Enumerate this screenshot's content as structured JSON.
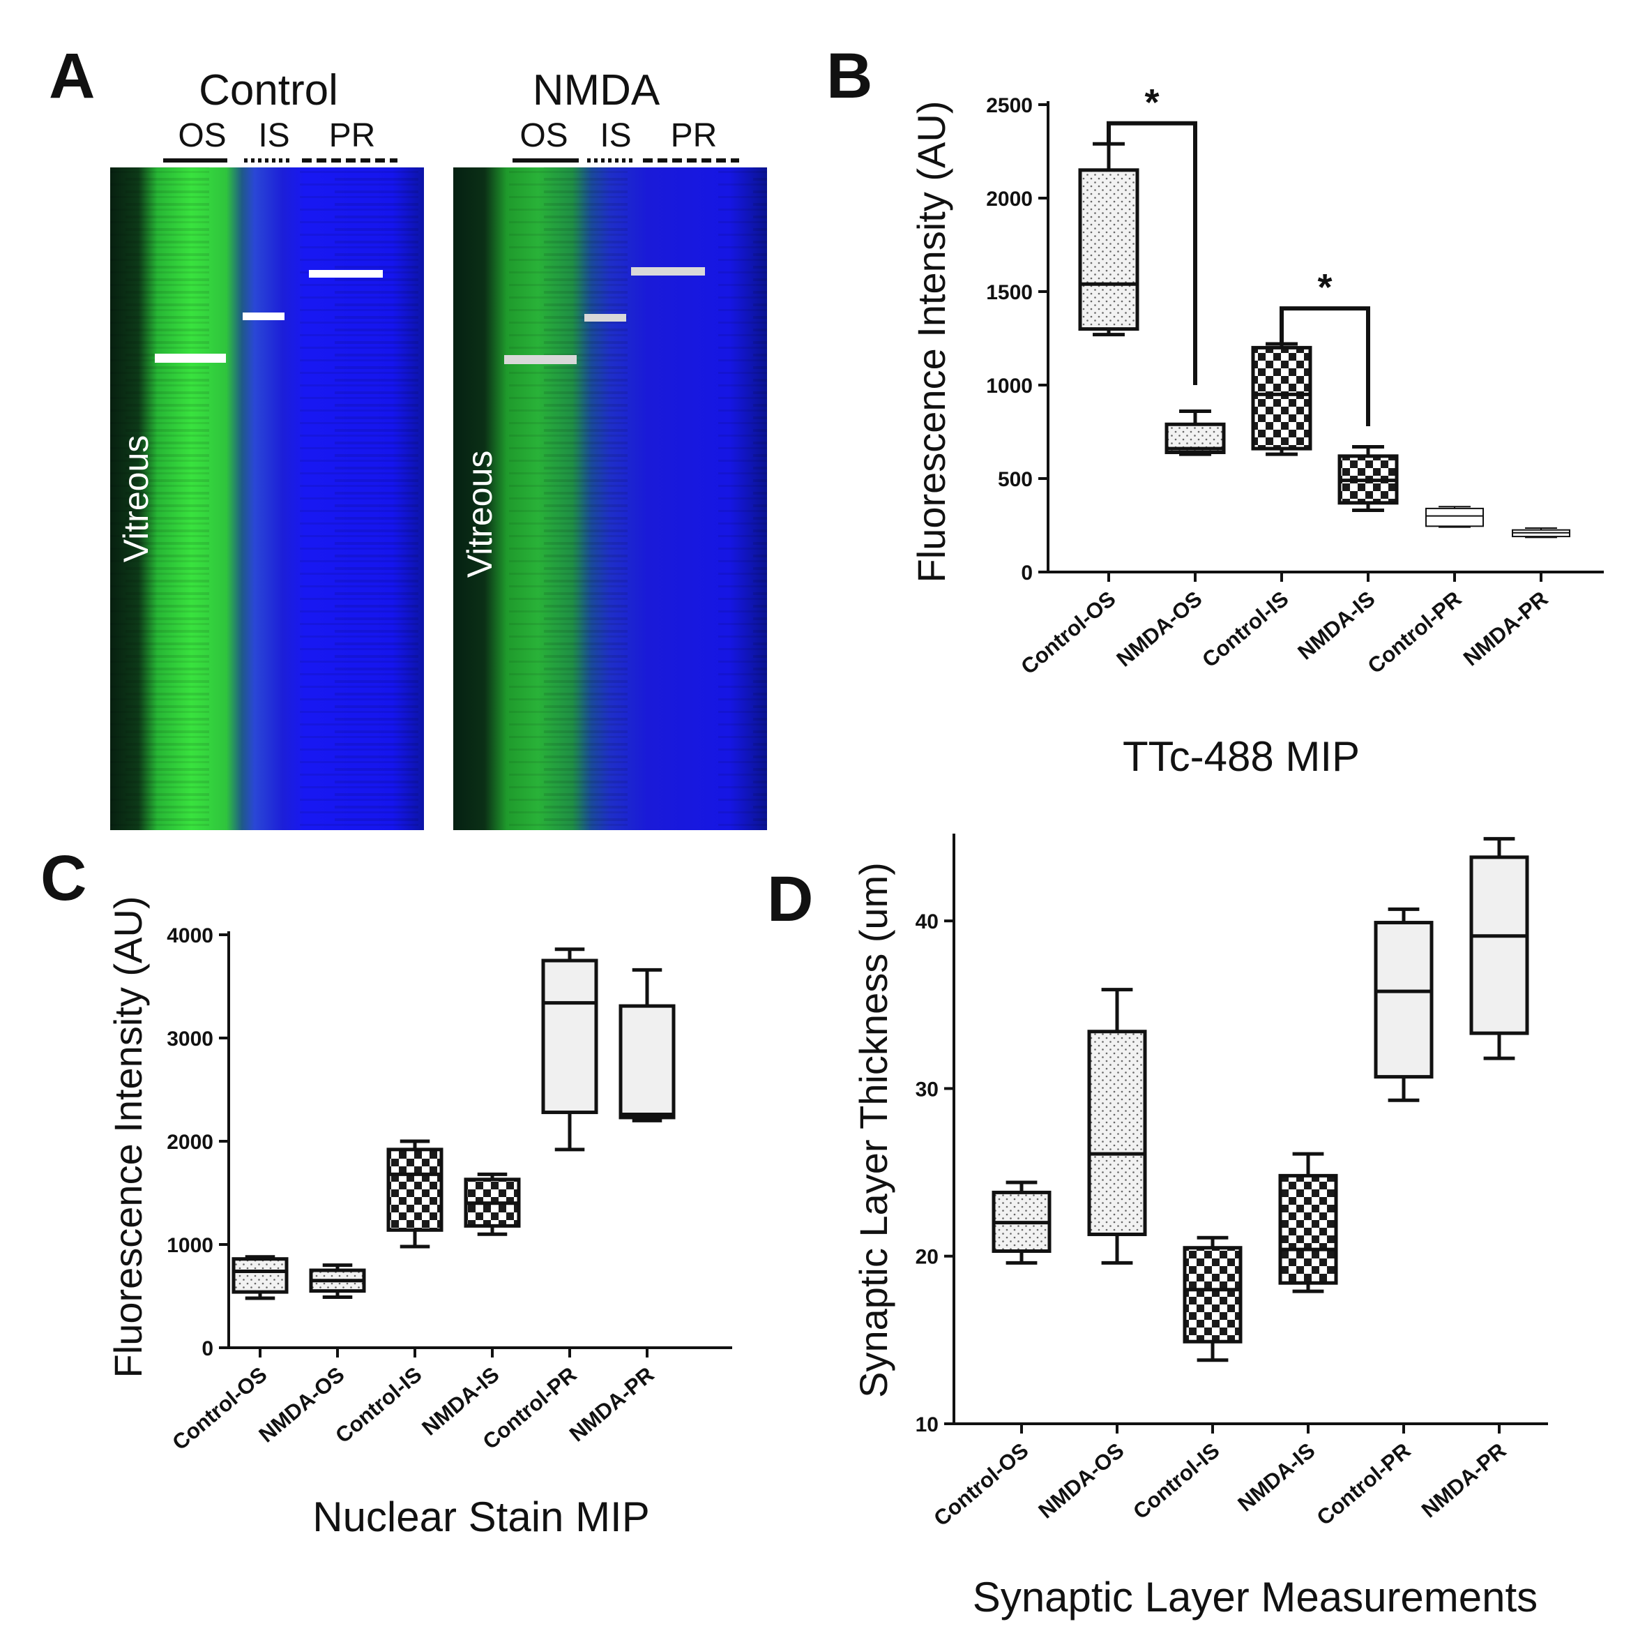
{
  "panel_a": {
    "letter": "A",
    "images": [
      {
        "title": "Control",
        "zones": [
          "OS",
          "IS",
          "PR"
        ],
        "side_label": "Vitreous"
      },
      {
        "title": "NMDA",
        "zones": [
          "OS",
          "IS",
          "PR"
        ],
        "side_label": "Vitreous"
      }
    ],
    "colors": {
      "green": "#2fd23a",
      "blue": "#1b1be6",
      "dark": "#0a2a12"
    }
  },
  "chart_data": [
    {
      "id": "B",
      "letter": "B",
      "type": "box",
      "categories": [
        "Control-OS",
        "NMDA-OS",
        "Control-IS",
        "NMDA-IS",
        "Control-PR",
        "NMDA-PR"
      ],
      "boxes": [
        {
          "min": 1270,
          "q1": 1300,
          "median": 1540,
          "q3": 2150,
          "max": 2290,
          "fill": "dots"
        },
        {
          "min": 630,
          "q1": 640,
          "median": 660,
          "q3": 790,
          "max": 860,
          "fill": "dots"
        },
        {
          "min": 630,
          "q1": 660,
          "median": 950,
          "q3": 1200,
          "max": 1220,
          "fill": "checker"
        },
        {
          "min": 330,
          "q1": 370,
          "median": 490,
          "q3": 620,
          "max": 670,
          "fill": "checker"
        },
        {
          "min": 240,
          "q1": 245,
          "median": 300,
          "q3": 340,
          "max": 350,
          "fill": "none"
        },
        {
          "min": 185,
          "q1": 190,
          "median": 210,
          "q3": 225,
          "max": 235,
          "fill": "none"
        }
      ],
      "yticks": [
        0,
        500,
        1000,
        1500,
        2000,
        2500
      ],
      "ylim": [
        0,
        2500
      ],
      "ylabel": "Fluorescence Intensity (AU)",
      "xlabel": "TTc-488 MIP",
      "significance": [
        {
          "from": 0,
          "to": 1,
          "y_start": 2290,
          "y_end": 1000,
          "y_top": 2400,
          "label": "*"
        },
        {
          "from": 2,
          "to": 3,
          "y_start": 1220,
          "y_end": 780,
          "y_top": 1410,
          "label": "*"
        }
      ]
    },
    {
      "id": "C",
      "letter": "C",
      "type": "box",
      "categories": [
        "Control-OS",
        "NMDA-OS",
        "Control-IS",
        "NMDA-IS",
        "Control-PR",
        "NMDA-PR"
      ],
      "boxes": [
        {
          "min": 480,
          "q1": 540,
          "median": 740,
          "q3": 860,
          "max": 880,
          "fill": "dots"
        },
        {
          "min": 490,
          "q1": 550,
          "median": 650,
          "q3": 750,
          "max": 800,
          "fill": "dots"
        },
        {
          "min": 980,
          "q1": 1140,
          "median": 1680,
          "q3": 1920,
          "max": 2000,
          "fill": "checker"
        },
        {
          "min": 1100,
          "q1": 1180,
          "median": 1400,
          "q3": 1630,
          "max": 1680,
          "fill": "checker"
        },
        {
          "min": 1920,
          "q1": 2280,
          "median": 3340,
          "q3": 3750,
          "max": 3860,
          "fill": "grey"
        },
        {
          "min": 2200,
          "q1": 2230,
          "median": 2260,
          "q3": 3310,
          "max": 3660,
          "fill": "grey"
        }
      ],
      "yticks": [
        0,
        1000,
        2000,
        3000,
        4000
      ],
      "ylim": [
        0,
        4000
      ],
      "ylabel": "Fluorescence Intensity (AU)",
      "xlabel": "Nuclear Stain MIP"
    },
    {
      "id": "D",
      "letter": "D",
      "type": "box",
      "categories": [
        "Control-OS",
        "NMDA-OS",
        "Control-IS",
        "NMDA-IS",
        "Control-PR",
        "NMDA-PR"
      ],
      "boxes": [
        {
          "min": 19.6,
          "q1": 20.3,
          "median": 22.0,
          "q3": 23.8,
          "max": 24.4,
          "fill": "dots"
        },
        {
          "min": 19.6,
          "q1": 21.3,
          "median": 26.1,
          "q3": 33.4,
          "max": 35.9,
          "fill": "dots"
        },
        {
          "min": 13.8,
          "q1": 14.9,
          "median": 18.0,
          "q3": 20.5,
          "max": 21.1,
          "fill": "checker"
        },
        {
          "min": 17.9,
          "q1": 18.4,
          "median": 20.4,
          "q3": 24.8,
          "max": 26.1,
          "fill": "checker"
        },
        {
          "min": 29.3,
          "q1": 30.7,
          "median": 35.8,
          "q3": 39.9,
          "max": 40.7,
          "fill": "grey"
        },
        {
          "min": 31.8,
          "q1": 33.3,
          "median": 39.1,
          "q3": 43.8,
          "max": 44.9,
          "fill": "grey"
        }
      ],
      "yticks": [
        10,
        20,
        30,
        40
      ],
      "ylim": [
        10,
        45
      ],
      "ylabel": "Synaptic Layer Thickness (um)",
      "xlabel": "Synaptic Layer Measurements"
    }
  ]
}
